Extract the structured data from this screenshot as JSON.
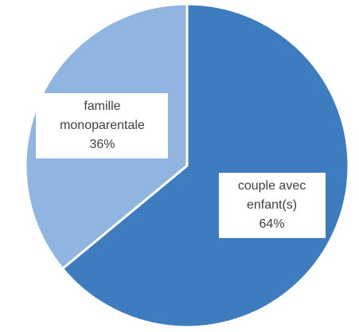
{
  "chart_data": {
    "type": "pie",
    "categories": [
      "couple avec enfant(s)",
      "famille monoparentale"
    ],
    "values": [
      64,
      36
    ],
    "value_labels": [
      "64%",
      "36%"
    ],
    "colors": [
      "#3d7dbf",
      "#8fb5e0"
    ]
  }
}
